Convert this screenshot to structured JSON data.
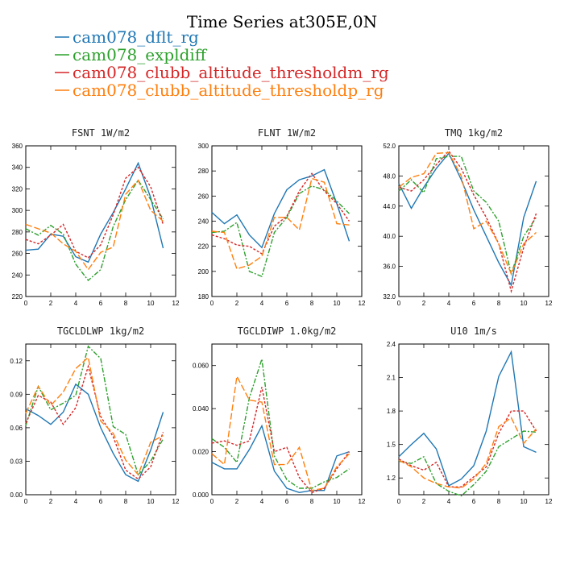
{
  "title": "Time Series at305E,0N",
  "legend": [
    {
      "name": "cam078_dflt_rg",
      "color": "#1f77b4",
      "dash": ""
    },
    {
      "name": "cam078_expldiff",
      "color": "#2ca02c",
      "dash": "6,2,2,2"
    },
    {
      "name": "cam078_clubb_altitude_thresholdm_rg",
      "color": "#d62728",
      "dash": "3,2"
    },
    {
      "name": "cam078_clubb_altitude_thresholdp_rg",
      "color": "#ff7f0e",
      "dash": "8,3"
    }
  ],
  "chart_data": [
    {
      "type": "line",
      "title": "FSNT  1W/m2",
      "x": [
        0,
        1,
        2,
        3,
        4,
        5,
        6,
        7,
        8,
        9,
        10,
        11
      ],
      "xlim": [
        0,
        12
      ],
      "xticks": [
        0,
        2,
        4,
        6,
        8,
        10,
        12
      ],
      "ylim": [
        220,
        360
      ],
      "yticks": [
        220,
        240,
        260,
        280,
        300,
        320,
        340,
        360
      ],
      "ytick_labels": [
        "220",
        "240",
        "260",
        "280",
        "300",
        "320",
        "340",
        "360"
      ],
      "series": [
        {
          "name": "cam078_dflt_rg",
          "values": [
            263,
            264,
            278,
            276,
            257,
            252,
            278,
            298,
            320,
            344,
            312,
            265
          ]
        },
        {
          "name": "cam078_expldiff",
          "values": [
            283,
            277,
            286,
            278,
            250,
            235,
            245,
            285,
            310,
            328,
            310,
            292
          ]
        },
        {
          "name": "cam078_clubb_altitude_thresholdm_rg",
          "values": [
            273,
            269,
            277,
            287,
            262,
            256,
            268,
            296,
            330,
            340,
            322,
            287
          ]
        },
        {
          "name": "cam078_clubb_altitude_thresholdp_rg",
          "values": [
            287,
            283,
            279,
            269,
            262,
            245,
            261,
            266,
            315,
            328,
            300,
            290
          ]
        }
      ]
    },
    {
      "type": "line",
      "title": "FLNT  1W/m2",
      "x": [
        0,
        1,
        2,
        3,
        4,
        5,
        6,
        7,
        8,
        9,
        10,
        11
      ],
      "xlim": [
        0,
        12
      ],
      "xticks": [
        0,
        2,
        4,
        6,
        8,
        10,
        12
      ],
      "ylim": [
        180,
        300
      ],
      "yticks": [
        180,
        200,
        220,
        240,
        260,
        280,
        300
      ],
      "ytick_labels": [
        "180",
        "200",
        "220",
        "240",
        "260",
        "280",
        "300"
      ],
      "series": [
        {
          "name": "cam078_dflt_rg",
          "values": [
            247,
            238,
            245,
            229,
            219,
            246,
            265,
            273,
            276,
            281,
            254,
            224
          ]
        },
        {
          "name": "cam078_expldiff",
          "values": [
            231,
            232,
            239,
            200,
            196,
            231,
            243,
            262,
            268,
            265,
            256,
            246
          ]
        },
        {
          "name": "cam078_clubb_altitude_thresholdm_rg",
          "values": [
            229,
            226,
            221,
            220,
            214,
            236,
            244,
            264,
            278,
            264,
            254,
            240
          ]
        },
        {
          "name": "cam078_clubb_altitude_thresholdp_rg",
          "values": [
            232,
            231,
            202,
            205,
            212,
            243,
            243,
            233,
            274,
            271,
            238,
            237
          ]
        }
      ]
    },
    {
      "type": "line",
      "title": "TMQ  1kg/m2",
      "x": [
        0,
        1,
        2,
        3,
        4,
        5,
        6,
        7,
        8,
        9,
        10,
        11
      ],
      "xlim": [
        0,
        12
      ],
      "xticks": [
        0,
        2,
        4,
        6,
        8,
        10,
        12
      ],
      "ylim": [
        32,
        52
      ],
      "yticks": [
        32,
        36,
        40,
        44,
        48,
        52
      ],
      "ytick_labels": [
        "32.0",
        "36.0",
        "40.0",
        "44.0",
        "48.0",
        "52.0"
      ],
      "series": [
        {
          "name": "cam078_dflt_rg",
          "values": [
            47.0,
            43.7,
            46.5,
            49.0,
            51.0,
            47.5,
            43.5,
            40.0,
            36.5,
            33.5,
            42.5,
            47.3
          ]
        },
        {
          "name": "cam078_expldiff",
          "values": [
            46.0,
            47.5,
            45.8,
            50.3,
            50.6,
            50.6,
            46.0,
            44.5,
            42.0,
            35.0,
            40.0,
            42.5
          ]
        },
        {
          "name": "cam078_clubb_altitude_thresholdm_rg",
          "values": [
            46.5,
            46.0,
            47.5,
            49.5,
            51.3,
            49.0,
            45.5,
            42.5,
            39.0,
            32.7,
            38.5,
            43.0
          ]
        },
        {
          "name": "cam078_clubb_altitude_thresholdp_rg",
          "values": [
            46.5,
            47.8,
            48.3,
            51.0,
            51.1,
            48.0,
            41.0,
            42.0,
            39.0,
            35.0,
            39.0,
            40.5
          ]
        }
      ]
    },
    {
      "type": "line",
      "title": "TGCLDLWP  1kg/m2",
      "x": [
        0,
        1,
        2,
        3,
        4,
        5,
        6,
        7,
        8,
        9,
        10,
        11
      ],
      "xlim": [
        0,
        12
      ],
      "xticks": [
        0,
        2,
        4,
        6,
        8,
        10,
        12
      ],
      "ylim": [
        0,
        0.135
      ],
      "yticks": [
        0,
        0.03,
        0.06,
        0.09,
        0.12
      ],
      "ytick_labels": [
        "0.00",
        "0.03",
        "0.06",
        "0.09",
        "0.12"
      ],
      "series": [
        {
          "name": "cam078_dflt_rg",
          "values": [
            0.077,
            0.071,
            0.063,
            0.074,
            0.099,
            0.09,
            0.06,
            0.037,
            0.018,
            0.012,
            0.04,
            0.074
          ]
        },
        {
          "name": "cam078_expldiff",
          "values": [
            0.062,
            0.097,
            0.076,
            0.082,
            0.089,
            0.133,
            0.122,
            0.061,
            0.054,
            0.018,
            0.03,
            0.05
          ]
        },
        {
          "name": "cam078_clubb_altitude_thresholdm_rg",
          "values": [
            0.064,
            0.089,
            0.083,
            0.063,
            0.078,
            0.115,
            0.07,
            0.052,
            0.022,
            0.014,
            0.025,
            0.056
          ]
        },
        {
          "name": "cam078_clubb_altitude_thresholdp_rg",
          "values": [
            0.073,
            0.097,
            0.08,
            0.092,
            0.113,
            0.123,
            0.066,
            0.055,
            0.031,
            0.018,
            0.047,
            0.053
          ]
        }
      ]
    },
    {
      "type": "line",
      "title": "TGCLDIWP  1.0kg/m2",
      "x": [
        0,
        1,
        2,
        3,
        4,
        5,
        6,
        7,
        8,
        9,
        10,
        11
      ],
      "xlim": [
        0,
        12
      ],
      "xticks": [
        0,
        2,
        4,
        6,
        8,
        10,
        12
      ],
      "ylim": [
        0,
        0.07
      ],
      "yticks": [
        0,
        0.02,
        0.04,
        0.06
      ],
      "ytick_labels": [
        "0.000",
        "0.020",
        "0.040",
        "0.060"
      ],
      "series": [
        {
          "name": "cam078_dflt_rg",
          "values": [
            0.015,
            0.012,
            0.012,
            0.021,
            0.032,
            0.011,
            0.003,
            0.001,
            0.002,
            0.002,
            0.018,
            0.02
          ]
        },
        {
          "name": "cam078_expldiff",
          "values": [
            0.026,
            0.022,
            0.015,
            0.045,
            0.063,
            0.018,
            0.007,
            0.003,
            0.003,
            0.006,
            0.008,
            0.012
          ]
        },
        {
          "name": "cam078_clubb_altitude_thresholdm_rg",
          "values": [
            0.024,
            0.025,
            0.023,
            0.025,
            0.05,
            0.02,
            0.022,
            0.008,
            0.001,
            0.003,
            0.012,
            0.02
          ]
        },
        {
          "name": "cam078_clubb_altitude_thresholdp_rg",
          "values": [
            0.019,
            0.014,
            0.055,
            0.044,
            0.043,
            0.014,
            0.014,
            0.022,
            0.002,
            0.003,
            0.013,
            0.019
          ]
        }
      ]
    },
    {
      "type": "line",
      "title": "U10  1m/s",
      "x": [
        0,
        1,
        2,
        3,
        4,
        5,
        6,
        7,
        8,
        9,
        10,
        11
      ],
      "xlim": [
        0,
        12
      ],
      "xticks": [
        0,
        2,
        4,
        6,
        8,
        10,
        12
      ],
      "ylim": [
        1.05,
        2.4
      ],
      "yticks": [
        1.2,
        1.5,
        1.8,
        2.1,
        2.4
      ],
      "ytick_labels": [
        "1.2",
        "1.5",
        "1.8",
        "2.1",
        "2.4"
      ],
      "series": [
        {
          "name": "cam078_dflt_rg",
          "values": [
            1.39,
            1.5,
            1.6,
            1.46,
            1.13,
            1.19,
            1.31,
            1.62,
            2.11,
            2.33,
            1.48,
            1.43
          ]
        },
        {
          "name": "cam078_expldiff",
          "values": [
            1.35,
            1.33,
            1.39,
            1.15,
            1.08,
            1.04,
            1.14,
            1.26,
            1.48,
            1.55,
            1.62,
            1.61
          ]
        },
        {
          "name": "cam078_clubb_altitude_thresholdm_rg",
          "values": [
            1.37,
            1.31,
            1.27,
            1.34,
            1.12,
            1.12,
            1.21,
            1.3,
            1.6,
            1.8,
            1.8,
            1.62
          ]
        },
        {
          "name": "cam078_clubb_altitude_thresholdp_rg",
          "values": [
            1.36,
            1.3,
            1.2,
            1.15,
            1.12,
            1.11,
            1.19,
            1.33,
            1.66,
            1.74,
            1.51,
            1.64
          ]
        }
      ]
    }
  ]
}
